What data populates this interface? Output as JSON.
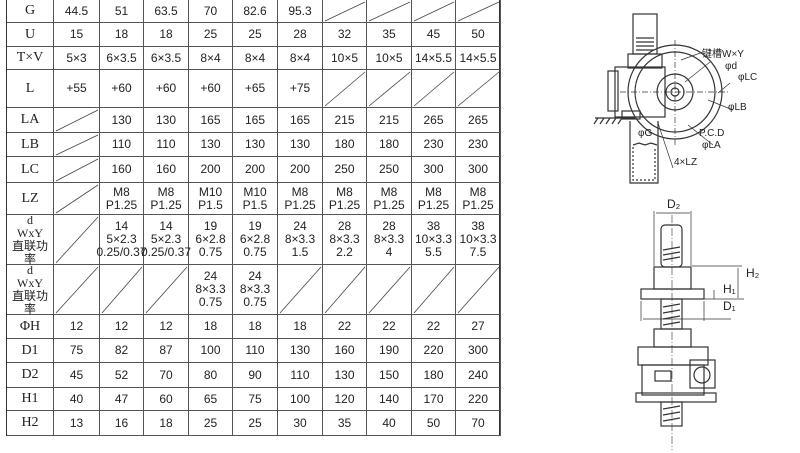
{
  "table": {
    "rows": [
      {
        "label": "G",
        "cells": [
          "44.5",
          "51",
          "63.5",
          "70",
          "82.6",
          "95.3",
          null,
          null,
          null,
          null
        ]
      },
      {
        "label": "U",
        "cells": [
          "15",
          "18",
          "18",
          "25",
          "25",
          "28",
          "32",
          "35",
          "45",
          "50"
        ]
      },
      {
        "label": "T×V",
        "cells": [
          "5×3",
          "6×3.5",
          "6×3.5",
          "8×4",
          "8×4",
          "8×4",
          "10×5",
          "10×5",
          "14×5.5",
          "14×5.5"
        ]
      },
      {
        "label": "L",
        "cells": [
          "+55",
          "+60",
          "+60",
          "+60",
          "+65",
          "+75",
          null,
          null,
          null,
          null
        ]
      },
      {
        "label": "LA",
        "cells": [
          null,
          "130",
          "130",
          "165",
          "165",
          "165",
          "215",
          "215",
          "265",
          "265"
        ]
      },
      {
        "label": "LB",
        "cells": [
          null,
          "110",
          "110",
          "130",
          "130",
          "130",
          "180",
          "180",
          "230",
          "230"
        ]
      },
      {
        "label": "LC",
        "cells": [
          null,
          "160",
          "160",
          "200",
          "200",
          "200",
          "250",
          "250",
          "300",
          "300"
        ]
      },
      {
        "label": "LZ",
        "cells": [
          null,
          "M8\nP1.25",
          "M8\nP1.25",
          "M10\nP1.5",
          "M10\nP1.5",
          "M8\nP1.25",
          "M8\nP1.25",
          "M8\nP1.25",
          "M8\nP1.25",
          "M8\nP1.25"
        ]
      },
      {
        "label": "d\nWxY\n直联功率",
        "cells": [
          null,
          "14\n5×2.3\n0.25/0.37",
          "14\n5×2.3\n0.25/0.37",
          "19\n6×2.8\n0.75",
          "19\n6×2.8\n0.75",
          "24\n8×3.3\n1.5",
          "28\n8×3.3\n2.2",
          "28\n8×3.3\n4",
          "38\n10×3.3\n5.5",
          "38\n10×3.3\n7.5"
        ]
      },
      {
        "label": "d\nWxY\n直联功率",
        "cells": [
          null,
          null,
          null,
          "24\n8×3.3\n0.75",
          "24\n8×3.3\n0.75",
          null,
          null,
          null,
          null,
          null
        ]
      },
      {
        "label": "ΦH",
        "cells": [
          "12",
          "12",
          "12",
          "18",
          "18",
          "18",
          "22",
          "22",
          "22",
          "27"
        ]
      },
      {
        "label": "D1",
        "cells": [
          "75",
          "82",
          "87",
          "100",
          "110",
          "130",
          "160",
          "190",
          "220",
          "300"
        ]
      },
      {
        "label": "D2",
        "cells": [
          "45",
          "52",
          "70",
          "80",
          "90",
          "110",
          "130",
          "150",
          "180",
          "240"
        ]
      },
      {
        "label": "H1",
        "cells": [
          "40",
          "47",
          "60",
          "65",
          "75",
          "100",
          "120",
          "140",
          "170",
          "220"
        ]
      },
      {
        "label": "H2",
        "cells": [
          "13",
          "16",
          "18",
          "25",
          "25",
          "30",
          "35",
          "40",
          "50",
          "70"
        ]
      }
    ]
  },
  "diagram_top": {
    "keyway": "键槽W×Y",
    "d": "φd",
    "lc": "φLC",
    "lb": "φLB",
    "pcd": "P.C.D",
    "la": "φLA",
    "g": "φG",
    "lz": "4×LZ"
  },
  "diagram_bottom": {
    "d2": "D₂",
    "h2": "H₂",
    "h1": "H₁",
    "d1": "D₁"
  }
}
